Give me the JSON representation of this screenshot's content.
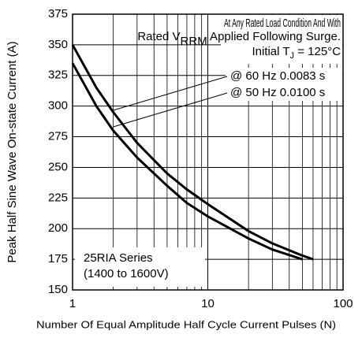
{
  "chart_data": {
    "type": "line",
    "xlabel": "Number Of Equal Amplitude Half Cycle Current Pulses (N)",
    "ylabel": "Peak Half Sine Wave On-state Current (A)",
    "xscale": "log",
    "xlim": [
      1,
      100
    ],
    "xticks": [
      1,
      10,
      100
    ],
    "xminor": [
      2,
      3,
      4,
      5,
      6,
      7,
      8,
      9,
      20,
      30,
      40,
      50,
      60,
      70,
      80,
      90
    ],
    "ylim": [
      150,
      375
    ],
    "yticks": [
      150,
      175,
      200,
      225,
      250,
      275,
      300,
      325,
      350,
      375
    ],
    "grid": true,
    "series": [
      {
        "name": "@ 60 Hz 0.0083 s",
        "color": "#000000",
        "x": [
          1,
          1.5,
          2,
          3,
          5,
          7,
          10,
          20,
          30,
          50,
          60
        ],
        "values": [
          350,
          315,
          295,
          270,
          245,
          232,
          220,
          198,
          188,
          178,
          175
        ]
      },
      {
        "name": "@ 50 Hz 0.0100 s",
        "color": "#000000",
        "x": [
          1,
          1.5,
          2,
          3,
          5,
          7,
          10,
          20,
          30,
          50
        ],
        "values": [
          335,
          300,
          280,
          258,
          235,
          221,
          210,
          192,
          183,
          175
        ]
      }
    ],
    "annotations": {
      "conditions": [
        "At Any Rated Load Condition And With",
        "Rated V",
        "RRM",
        " Applied Following Surge.",
        "Initial T",
        "J",
        " = 125°C"
      ],
      "device": [
        "25RIA Series",
        "(1400 to 1600V)"
      ]
    }
  }
}
